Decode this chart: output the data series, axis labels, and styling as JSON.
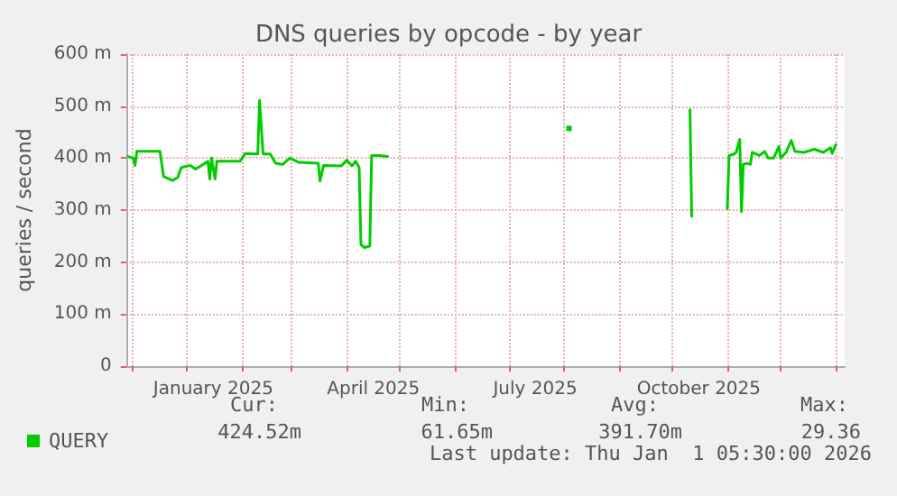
{
  "chart_data": {
    "type": "line",
    "title": "DNS queries by opcode - by year",
    "ylabel": "queries / second",
    "x": [
      "2024-11-29",
      "2024-12-02",
      "2024-12-03",
      "2024-12-04",
      "2024-12-17",
      "2024-12-19",
      "2024-12-24",
      "2024-12-27",
      "2024-12-29",
      "2025-01-03",
      "2025-01-06",
      "2025-01-09",
      "2025-01-13",
      "2025-01-14",
      "2025-01-15",
      "2025-01-17",
      "2025-01-18",
      "2025-01-23",
      "2025-01-31",
      "2025-02-03",
      "2025-02-10",
      "2025-02-11",
      "2025-02-13",
      "2025-02-17",
      "2025-02-20",
      "2025-02-24",
      "2025-02-28",
      "2025-03-05",
      "2025-03-16",
      "2025-03-17",
      "2025-03-19",
      "2025-03-29",
      "2025-04-01",
      "2025-04-04",
      "2025-04-06",
      "2025-04-08",
      "2025-04-09",
      "2025-04-11",
      "2025-04-14",
      "2025-04-15",
      "2025-04-19",
      "2025-04-24",
      "2025-05-01",
      "2025-08-04",
      "2025-08-08",
      "2025-10-11",
      "2025-10-12",
      "2025-10-13",
      "2025-11-01",
      "2025-11-02",
      "2025-11-05",
      "2025-11-06",
      "2025-11-08",
      "2025-11-09",
      "2025-11-10",
      "2025-11-12",
      "2025-11-14",
      "2025-11-15",
      "2025-11-19",
      "2025-11-22",
      "2025-11-24",
      "2025-11-27",
      "2025-11-30",
      "2025-12-01",
      "2025-12-04",
      "2025-12-07",
      "2025-12-09",
      "2025-12-14",
      "2025-12-20",
      "2025-12-25",
      "2025-12-29",
      "2025-12-30",
      "2026-01-01"
    ],
    "series": [
      {
        "name": "QUERY",
        "color": "#00cc00",
        "values": [
          403,
          400,
          386,
          413,
          413,
          365,
          357,
          363,
          382,
          386,
          379,
          385,
          394,
          360,
          400,
          360,
          394,
          394,
          394,
          409,
          408,
          511,
          408,
          408,
          390,
          388,
          400,
          392,
          390,
          356,
          386,
          385,
          396,
          385,
          394,
          382,
          234,
          228,
          231,
          405,
          405,
          403,
          null,
          457,
          null,
          493,
          288,
          null,
          303,
          405,
          408,
          411,
          436,
          297,
          388,
          390,
          388,
          411,
          405,
          413,
          400,
          400,
          422,
          400,
          411,
          434,
          413,
          411,
          417,
          411,
          420,
          409,
          426
        ]
      }
    ],
    "xlim": [
      "2024-11-28",
      "2026-01-06"
    ],
    "xticks": [
      {
        "value": "2024-12-01",
        "label": null
      },
      {
        "value": "2025-01-01",
        "label": null
      },
      {
        "value": "2025-01-16",
        "label": "January 2025"
      },
      {
        "value": "2025-02-01",
        "label": null
      },
      {
        "value": "2025-03-01",
        "label": null
      },
      {
        "value": "2025-04-01",
        "label": null
      },
      {
        "value": "2025-04-16",
        "label": "April 2025"
      },
      {
        "value": "2025-05-01",
        "label": null
      },
      {
        "value": "2025-06-01",
        "label": null
      },
      {
        "value": "2025-07-01",
        "label": null
      },
      {
        "value": "2025-07-16",
        "label": "July 2025"
      },
      {
        "value": "2025-08-01",
        "label": null
      },
      {
        "value": "2025-09-01",
        "label": null
      },
      {
        "value": "2025-10-01",
        "label": null
      },
      {
        "value": "2025-10-16",
        "label": "October 2025"
      },
      {
        "value": "2025-11-01",
        "label": null
      },
      {
        "value": "2025-12-01",
        "label": null
      },
      {
        "value": "2026-01-01",
        "label": null
      }
    ],
    "ylim": [
      0,
      600
    ],
    "yticks": [
      0,
      {
        "value": 100,
        "label": "100 m"
      },
      {
        "value": 200,
        "label": "200 m"
      },
      {
        "value": 300,
        "label": "300 m"
      },
      {
        "value": 400,
        "label": "400 m"
      },
      {
        "value": 500,
        "label": "500 m"
      },
      {
        "value": 600,
        "label": "600 m"
      }
    ],
    "grid": true,
    "legend": "bottom left",
    "marker": "none",
    "line_style": "solid",
    "annotations": [
      "Cur:",
      "424.52m",
      "Min:",
      "61.65m",
      "Avg:",
      "391.70m",
      "Max:",
      "29.36",
      "Last update: Thu Jan  1 05:30:00 2026"
    ]
  }
}
